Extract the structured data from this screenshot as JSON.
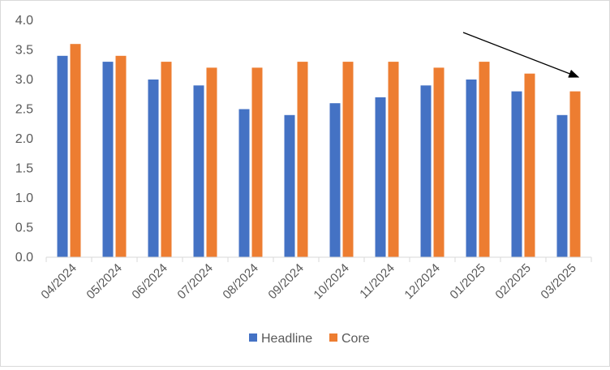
{
  "colors": {
    "headline": "#4472C4",
    "core": "#ED7D31",
    "axis": "#d9d9d9",
    "text": "#595959",
    "arrow": "#000000"
  },
  "chart_data": {
    "type": "bar",
    "title": "",
    "xlabel": "",
    "ylabel": "",
    "categories": [
      "04/2024",
      "05/2024",
      "06/2024",
      "07/2024",
      "08/2024",
      "09/2024",
      "10/2024",
      "11/2024",
      "12/2024",
      "01/2025",
      "02/2025",
      "03/2025"
    ],
    "series": [
      {
        "name": "Headline",
        "values": [
          3.4,
          3.3,
          3.0,
          2.9,
          2.5,
          2.4,
          2.6,
          2.7,
          2.9,
          3.0,
          2.8,
          2.4
        ]
      },
      {
        "name": "Core",
        "values": [
          3.6,
          3.4,
          3.3,
          3.2,
          3.2,
          3.3,
          3.3,
          3.3,
          3.2,
          3.3,
          3.1,
          2.8
        ]
      }
    ],
    "ylim": [
      0,
      4.0
    ],
    "yticks": [
      "0.0",
      "0.5",
      "1.0",
      "1.5",
      "2.0",
      "2.5",
      "3.0",
      "3.5",
      "4.0"
    ],
    "grid": false,
    "legend_position": "bottom",
    "annotation": "arrow pointing down to the final Core bar"
  }
}
